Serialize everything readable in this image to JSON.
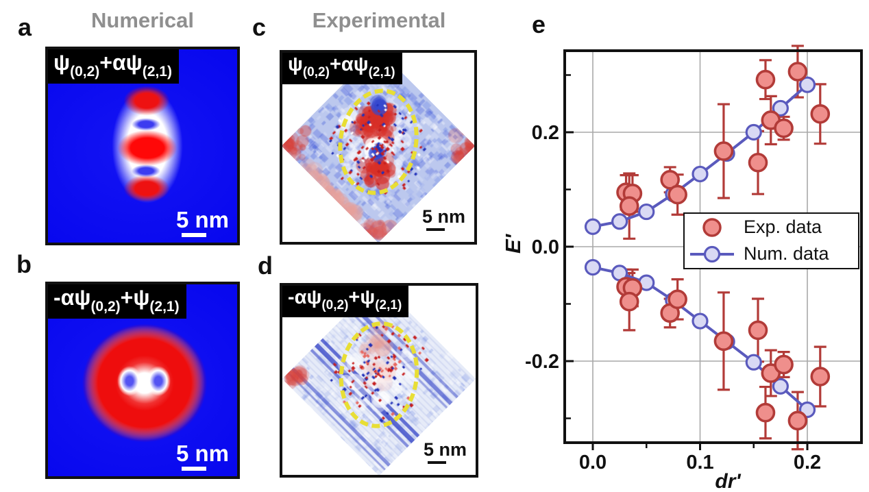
{
  "figure": {
    "column_titles": {
      "numerical": "Numerical",
      "experimental": "Experimental"
    },
    "panel_letters": {
      "a": "a",
      "b": "b",
      "c": "c",
      "d": "d",
      "e": "e"
    }
  },
  "panels": {
    "a": {
      "label_parts": [
        "ψ",
        "(0,2)",
        "+αψ",
        "(2,1)"
      ],
      "scale_bar": "5 nm"
    },
    "b": {
      "label_parts": [
        "-αψ",
        "(0,2)",
        "+ψ",
        "(2,1)"
      ],
      "scale_bar": "5 nm"
    },
    "c": {
      "label_parts": [
        "ψ",
        "(0,2)",
        "+αψ",
        "(2,1)"
      ],
      "scale_bar": "5 nm"
    },
    "d": {
      "label_parts": [
        "-αψ",
        "(0,2)",
        "+ψ",
        "(2,1)"
      ],
      "scale_bar": "5 nm"
    }
  },
  "chart_data": {
    "type": "scatter",
    "title": "",
    "xlabel": "dr'",
    "ylabel": "E'",
    "xlim": [
      -0.028,
      0.252
    ],
    "ylim": [
      -0.345,
      0.345
    ],
    "xticks": [
      0.0,
      0.1,
      0.2
    ],
    "yticks": [
      0.2,
      0.0,
      -0.2
    ],
    "x_minor_ticks": [
      0.05,
      0.15
    ],
    "y_minor_ticks": [
      0.3,
      0.1,
      -0.1,
      -0.3
    ],
    "grid": true,
    "legend": {
      "position": "inside-right-middle",
      "entries": [
        "Exp. data",
        "Num. data"
      ]
    },
    "series": [
      {
        "name": "Num. data",
        "type": "line-marker",
        "x": [
          0.0,
          0.025,
          0.05,
          0.075,
          0.1,
          0.125,
          0.15,
          0.175,
          0.2
        ],
        "y_upper": [
          0.035,
          0.044,
          0.061,
          0.092,
          0.127,
          0.163,
          0.2,
          0.242,
          0.283
        ],
        "y_lower": [
          -0.036,
          -0.046,
          -0.063,
          -0.094,
          -0.13,
          -0.166,
          -0.202,
          -0.244,
          -0.285
        ]
      },
      {
        "name": "Exp. data",
        "type": "scatter-errorbar",
        "points_upper": [
          [
            0.031,
            0.095,
            0.03
          ],
          [
            0.037,
            0.093,
            0.032
          ],
          [
            0.034,
            0.071,
            0.057
          ],
          [
            0.072,
            0.117,
            0.022
          ],
          [
            0.079,
            0.091,
            0.035
          ],
          [
            0.122,
            0.167,
            0.082
          ],
          [
            0.154,
            0.147,
            0.055
          ],
          [
            0.161,
            0.292,
            0.034
          ],
          [
            0.166,
            0.221,
            0.042
          ],
          [
            0.178,
            0.207,
            0.02
          ],
          [
            0.191,
            0.306,
            0.045
          ],
          [
            0.212,
            0.232,
            0.052
          ]
        ],
        "points_lower": [
          [
            0.031,
            -0.07,
            0.03
          ],
          [
            0.037,
            -0.072,
            0.032
          ],
          [
            0.034,
            -0.096,
            0.05
          ],
          [
            0.072,
            -0.116,
            0.025
          ],
          [
            0.079,
            -0.092,
            0.035
          ],
          [
            0.122,
            -0.165,
            0.085
          ],
          [
            0.154,
            -0.146,
            0.055
          ],
          [
            0.161,
            -0.29,
            0.045
          ],
          [
            0.166,
            -0.221,
            0.04
          ],
          [
            0.178,
            -0.206,
            0.022
          ],
          [
            0.191,
            -0.304,
            0.05
          ],
          [
            0.212,
            -0.227,
            0.052
          ]
        ]
      }
    ]
  },
  "colors": {
    "exp_fill": "#ef8f8c",
    "exp_stroke": "#b23b38",
    "num_fill": "#d9d9f4",
    "num_stroke": "#5a5abd",
    "grid": "#a9a9a9",
    "axis": "#111111",
    "title_gray": "#8f8f8f",
    "ellipse_yellow": "#e8de35"
  }
}
